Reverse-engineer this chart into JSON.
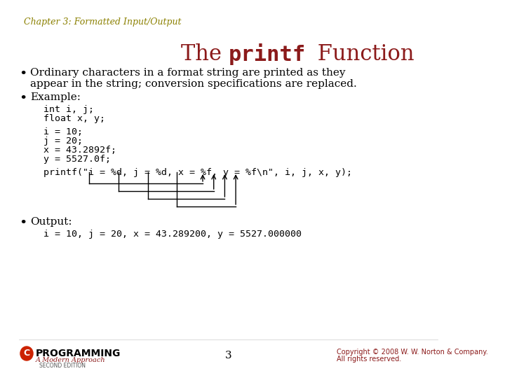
{
  "chapter_label": "Chapter 3: Formatted Input/Output",
  "title_normal": "The ",
  "title_code": "printf",
  "title_suffix": " Function",
  "bg_color": "#ffffff",
  "chapter_color": "#8B8000",
  "title_color": "#8B1A1A",
  "body_color": "#000000",
  "code_color": "#000000",
  "bullet1_line1": "Ordinary characters in a format string are printed as they",
  "bullet1_line2": "appear in the string; conversion specifications are replaced.",
  "bullet2": "Example:",
  "code_block1_line1": "int i, j;",
  "code_block1_line2": "float x, y;",
  "code_block2_line1": "i = 10;",
  "code_block2_line2": "j = 20;",
  "code_block2_line3": "x = 43.2892f;",
  "code_block2_line4": "y = 5527.0f;",
  "printf_line": "printf(\"i = %d, j = %d, x = %f, y = %f\\n\", i, j, x, y);",
  "bullet3": "Output:",
  "output_line": "i = 10, j = 20, x = 43.289200, y = 5527.000000",
  "footer_page": "3",
  "footer_copyright": "Copyright © 2008 W. W. Norton & Company.",
  "footer_rights": "All rights reserved.",
  "logo_c_color": "#cc2200",
  "logo_text_color": "#000000",
  "logo_sub_color": "#8B1A1A"
}
